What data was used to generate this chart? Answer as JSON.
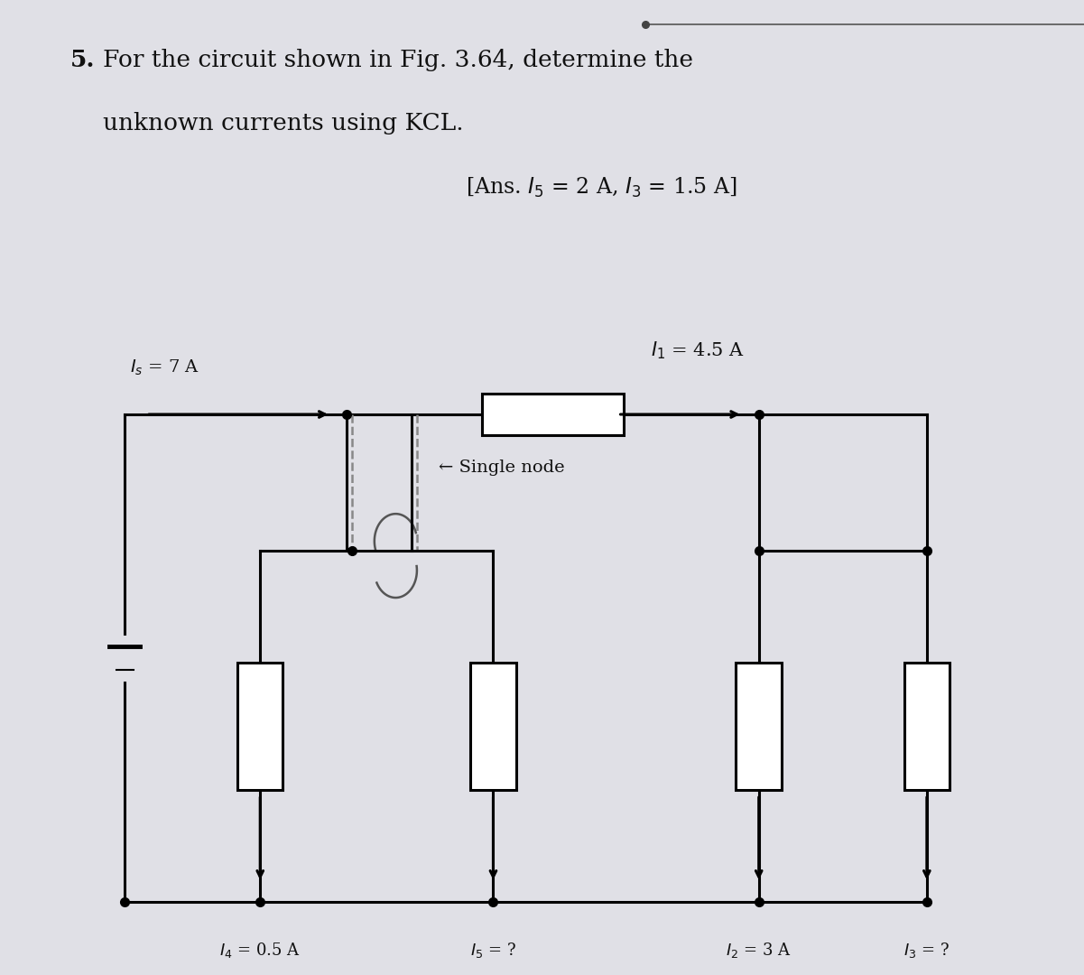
{
  "bg_color": "#e0e0e6",
  "line_color": "#000000",
  "lw": 2.2,
  "dot_size": 7,
  "resistor_color": "#ffffff",
  "resistor_edge": "#000000",
  "title_bold": "5.",
  "title_line1": " For the circuit shown in Fig. 3.64, determine the",
  "title_line2": "   unknown currents using KCL.",
  "ans_text": "[Ans. $I_5$ = 2 A, $I_3$ = 1.5 A]",
  "label_Is": "$I_s$ = 7 A",
  "label_I1": "$I_1$ = 4.5 A",
  "label_I4": "$I_4$ = 0.5 A",
  "label_I5": "$I_5$ = ?",
  "label_I2": "$I_2$ = 3 A",
  "label_I3": "$I_3$ = ?",
  "label_single_node": "← Single node",
  "nodes": {
    "xL": 0.115,
    "xJ1": 0.32,
    "xJ2": 0.38,
    "xI4": 0.24,
    "xI5": 0.455,
    "xR1": 0.7,
    "xR2": 0.855,
    "yTop": 0.575,
    "yMidL": 0.435,
    "yMidR": 0.435,
    "yBot": 0.075
  }
}
